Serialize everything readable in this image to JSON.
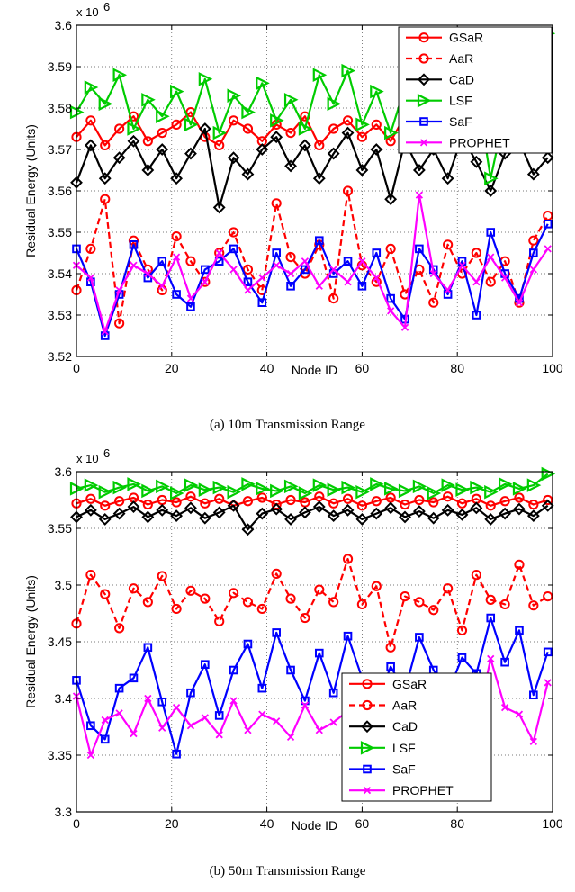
{
  "chart_data": [
    {
      "type": "line",
      "caption": "(a)  10m Transmission Range",
      "xlabel": "Node ID",
      "ylabel": "Residual Energy (Units)",
      "multiplier": "x 10",
      "multiplier_exp": "6",
      "xlim": [
        0,
        100
      ],
      "ylim": [
        3.52,
        3.6
      ],
      "xticks": [
        0,
        20,
        40,
        60,
        80,
        100
      ],
      "xtick_labels": [
        "0",
        "20",
        "40",
        "60",
        "80",
        "100"
      ],
      "yticks": [
        3.52,
        3.53,
        3.54,
        3.55,
        3.56,
        3.57,
        3.58,
        3.59,
        3.6
      ],
      "ytick_labels": [
        "3.52",
        "3.53",
        "3.54",
        "3.55",
        "3.56",
        "3.57",
        "3.58",
        "3.59",
        "3.6"
      ],
      "grid": true,
      "legend_position": "top-right",
      "x": [
        0,
        3,
        6,
        9,
        12,
        15,
        18,
        21,
        24,
        27,
        30,
        33,
        36,
        39,
        42,
        45,
        48,
        51,
        54,
        57,
        60,
        63,
        66,
        69,
        72,
        75,
        78,
        81,
        84,
        87,
        90,
        93,
        96,
        99
      ],
      "series": [
        {
          "name": "GSaR",
          "color": "#ff0000",
          "marker": "circle",
          "dash": "solid",
          "values": [
            3.573,
            3.577,
            3.571,
            3.575,
            3.578,
            3.572,
            3.574,
            3.576,
            3.579,
            3.573,
            3.571,
            3.577,
            3.575,
            3.572,
            3.576,
            3.574,
            3.578,
            3.571,
            3.575,
            3.577,
            3.573,
            3.576,
            3.572,
            3.578,
            3.574,
            3.571,
            3.576,
            3.573,
            3.577,
            3.575,
            3.572,
            3.578,
            3.574,
            3.576
          ]
        },
        {
          "name": "AaR",
          "color": "#ff0000",
          "marker": "circle",
          "dash": "dashed",
          "values": [
            3.536,
            3.546,
            3.558,
            3.528,
            3.548,
            3.541,
            3.536,
            3.549,
            3.543,
            3.538,
            3.545,
            3.55,
            3.541,
            3.536,
            3.557,
            3.544,
            3.54,
            3.547,
            3.534,
            3.56,
            3.542,
            3.538,
            3.546,
            3.535,
            3.541,
            3.533,
            3.547,
            3.54,
            3.545,
            3.538,
            3.543,
            3.533,
            3.548,
            3.554
          ]
        },
        {
          "name": "CaD",
          "color": "#000000",
          "marker": "diamond",
          "dash": "solid",
          "values": [
            3.562,
            3.571,
            3.563,
            3.568,
            3.572,
            3.565,
            3.57,
            3.563,
            3.569,
            3.575,
            3.556,
            3.568,
            3.564,
            3.57,
            3.573,
            3.566,
            3.571,
            3.563,
            3.569,
            3.574,
            3.565,
            3.57,
            3.558,
            3.572,
            3.565,
            3.57,
            3.563,
            3.573,
            3.567,
            3.56,
            3.569,
            3.572,
            3.564,
            3.568
          ]
        },
        {
          "name": "LSF",
          "color": "#00cc00",
          "marker": "triangle-right",
          "dash": "solid",
          "values": [
            3.579,
            3.585,
            3.581,
            3.588,
            3.575,
            3.582,
            3.578,
            3.584,
            3.576,
            3.587,
            3.574,
            3.583,
            3.579,
            3.586,
            3.577,
            3.582,
            3.575,
            3.588,
            3.581,
            3.589,
            3.576,
            3.584,
            3.574,
            3.585,
            3.578,
            3.582,
            3.576,
            3.58,
            3.585,
            3.563,
            3.579,
            3.582,
            3.577,
            3.598
          ]
        },
        {
          "name": "SaF",
          "color": "#0000ff",
          "marker": "square",
          "dash": "solid",
          "values": [
            3.546,
            3.538,
            3.525,
            3.535,
            3.547,
            3.539,
            3.543,
            3.535,
            3.532,
            3.541,
            3.543,
            3.546,
            3.538,
            3.533,
            3.545,
            3.537,
            3.541,
            3.548,
            3.54,
            3.543,
            3.537,
            3.545,
            3.534,
            3.529,
            3.546,
            3.541,
            3.535,
            3.543,
            3.53,
            3.55,
            3.54,
            3.534,
            3.545,
            3.552
          ]
        },
        {
          "name": "PROPHET",
          "color": "#ff00ff",
          "marker": "x",
          "dash": "solid",
          "values": [
            3.542,
            3.539,
            3.526,
            3.536,
            3.542,
            3.54,
            3.537,
            3.544,
            3.534,
            3.538,
            3.545,
            3.541,
            3.536,
            3.539,
            3.542,
            3.54,
            3.543,
            3.537,
            3.541,
            3.538,
            3.543,
            3.539,
            3.531,
            3.527,
            3.559,
            3.54,
            3.536,
            3.542,
            3.538,
            3.544,
            3.539,
            3.533,
            3.541,
            3.546
          ]
        }
      ]
    },
    {
      "type": "line",
      "caption": "(b)  50m Transmission Range",
      "xlabel": "Node ID",
      "ylabel": "Residual Energy (Units)",
      "multiplier": "x 10",
      "multiplier_exp": "6",
      "xlim": [
        0,
        100
      ],
      "ylim": [
        3.3,
        3.6
      ],
      "xticks": [
        0,
        20,
        40,
        60,
        80,
        100
      ],
      "xtick_labels": [
        "0",
        "20",
        "40",
        "60",
        "80",
        "100"
      ],
      "yticks": [
        3.3,
        3.35,
        3.4,
        3.45,
        3.5,
        3.55,
        3.6
      ],
      "ytick_labels": [
        "3.3",
        "3.35",
        "3.4",
        "3.45",
        "3.5",
        "3.55",
        "3.6"
      ],
      "grid": true,
      "legend_position": "bottom-right",
      "x": [
        0,
        3,
        6,
        9,
        12,
        15,
        18,
        21,
        24,
        27,
        30,
        33,
        36,
        39,
        42,
        45,
        48,
        51,
        54,
        57,
        60,
        63,
        66,
        69,
        72,
        75,
        78,
        81,
        84,
        87,
        90,
        93,
        96,
        99
      ],
      "series": [
        {
          "name": "GSaR",
          "color": "#ff0000",
          "marker": "circle",
          "dash": "solid",
          "values": [
            3.572,
            3.576,
            3.57,
            3.574,
            3.577,
            3.571,
            3.575,
            3.573,
            3.578,
            3.572,
            3.576,
            3.57,
            3.574,
            3.577,
            3.571,
            3.575,
            3.573,
            3.578,
            3.572,
            3.576,
            3.57,
            3.574,
            3.577,
            3.571,
            3.575,
            3.573,
            3.578,
            3.572,
            3.576,
            3.57,
            3.574,
            3.577,
            3.571,
            3.575
          ]
        },
        {
          "name": "AaR",
          "color": "#ff0000",
          "marker": "circle",
          "dash": "dashed",
          "values": [
            3.466,
            3.509,
            3.492,
            3.462,
            3.497,
            3.485,
            3.508,
            3.479,
            3.495,
            3.488,
            3.468,
            3.493,
            3.485,
            3.479,
            3.51,
            3.488,
            3.471,
            3.496,
            3.485,
            3.523,
            3.483,
            3.499,
            3.445,
            3.49,
            3.485,
            3.478,
            3.497,
            3.46,
            3.509,
            3.487,
            3.483,
            3.518,
            3.482,
            3.49
          ]
        },
        {
          "name": "CaD",
          "color": "#000000",
          "marker": "diamond",
          "dash": "solid",
          "values": [
            3.56,
            3.566,
            3.558,
            3.563,
            3.569,
            3.56,
            3.566,
            3.561,
            3.568,
            3.559,
            3.564,
            3.57,
            3.549,
            3.563,
            3.567,
            3.558,
            3.564,
            3.569,
            3.561,
            3.566,
            3.558,
            3.563,
            3.568,
            3.56,
            3.565,
            3.559,
            3.566,
            3.562,
            3.568,
            3.558,
            3.563,
            3.567,
            3.561,
            3.57
          ]
        },
        {
          "name": "LSF",
          "color": "#00cc00",
          "marker": "triangle-right",
          "dash": "solid",
          "values": [
            3.585,
            3.588,
            3.582,
            3.586,
            3.589,
            3.583,
            3.587,
            3.581,
            3.588,
            3.584,
            3.586,
            3.582,
            3.589,
            3.585,
            3.583,
            3.587,
            3.581,
            3.588,
            3.584,
            3.586,
            3.582,
            3.589,
            3.585,
            3.583,
            3.587,
            3.581,
            3.588,
            3.584,
            3.586,
            3.582,
            3.589,
            3.585,
            3.588,
            3.598
          ]
        },
        {
          "name": "SaF",
          "color": "#0000ff",
          "marker": "square",
          "dash": "solid",
          "values": [
            3.416,
            3.376,
            3.364,
            3.409,
            3.418,
            3.445,
            3.397,
            3.351,
            3.405,
            3.43,
            3.385,
            3.425,
            3.448,
            3.409,
            3.458,
            3.425,
            3.398,
            3.44,
            3.405,
            3.455,
            3.418,
            3.395,
            3.428,
            3.407,
            3.454,
            3.425,
            3.405,
            3.436,
            3.422,
            3.471,
            3.432,
            3.46,
            3.403,
            3.441
          ]
        },
        {
          "name": "PROPHET",
          "color": "#ff00ff",
          "marker": "x",
          "dash": "solid",
          "values": [
            3.402,
            3.35,
            3.381,
            3.387,
            3.369,
            3.4,
            3.374,
            3.392,
            3.376,
            3.383,
            3.368,
            3.398,
            3.372,
            3.386,
            3.38,
            3.366,
            3.394,
            3.372,
            3.379,
            3.389,
            3.374,
            3.382,
            3.392,
            3.368,
            3.378,
            3.401,
            3.372,
            3.384,
            3.376,
            3.435,
            3.392,
            3.386,
            3.362,
            3.414
          ]
        }
      ]
    }
  ]
}
